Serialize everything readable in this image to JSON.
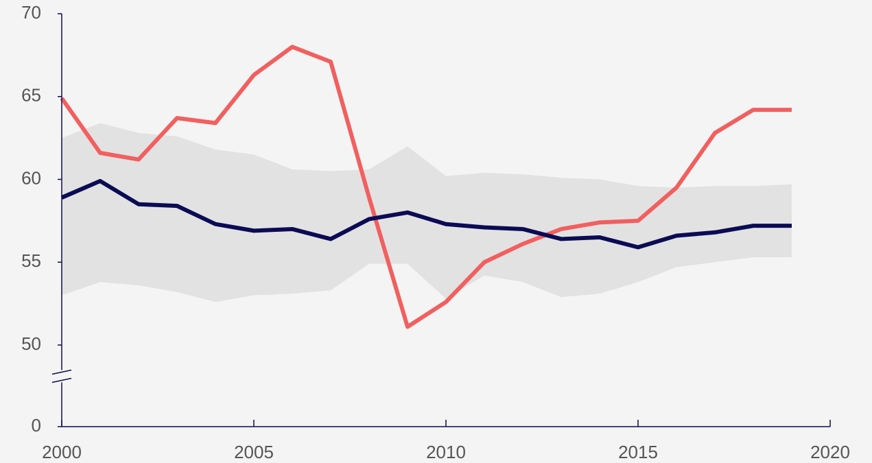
{
  "chart_data": {
    "type": "line",
    "x": [
      2000,
      2001,
      2002,
      2003,
      2004,
      2005,
      2006,
      2007,
      2008,
      2009,
      2010,
      2011,
      2012,
      2013,
      2014,
      2015,
      2016,
      2017,
      2018,
      2019
    ],
    "series": [
      {
        "color": "#f25f5f",
        "values": [
          64.9,
          61.6,
          61.2,
          63.7,
          63.4,
          66.3,
          68.0,
          67.1,
          58.9,
          51.1,
          52.6,
          55.0,
          56.1,
          57.0,
          57.4,
          57.5,
          59.5,
          62.8,
          64.2,
          64.2
        ]
      },
      {
        "color": "#0b0b55",
        "values": [
          58.9,
          59.9,
          58.5,
          58.4,
          57.3,
          56.9,
          57.0,
          56.4,
          57.6,
          58.0,
          57.3,
          57.1,
          57.0,
          56.4,
          56.5,
          55.9,
          56.6,
          56.8,
          57.2,
          57.2
        ]
      }
    ],
    "band": {
      "color": "#e2e2e2",
      "upper": [
        62.5,
        63.4,
        62.8,
        62.6,
        61.8,
        61.5,
        60.6,
        60.5,
        60.6,
        62.0,
        60.2,
        60.4,
        60.3,
        60.1,
        60.0,
        59.6,
        59.5,
        59.6,
        59.6,
        59.7
      ],
      "lower": [
        53.0,
        53.8,
        53.6,
        53.2,
        52.6,
        53.0,
        53.1,
        53.3,
        54.9,
        54.9,
        52.8,
        54.2,
        53.8,
        52.9,
        53.1,
        53.8,
        54.7,
        55.0,
        55.3,
        55.3
      ]
    },
    "xlim": [
      2000,
      2020
    ],
    "xticks": [
      2000,
      2005,
      2010,
      2015,
      2020
    ],
    "ylim": [
      0,
      70
    ],
    "yticks": [
      0,
      50,
      55,
      60,
      65,
      70
    ],
    "y_break": [
      0,
      50
    ],
    "axis_color": "#0b0b55"
  }
}
